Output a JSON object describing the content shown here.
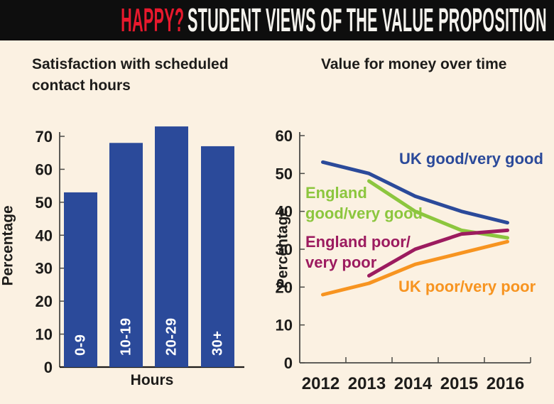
{
  "header": {
    "highlight": "HAPPY?",
    "title": "STUDENT VIEWS OF THE VALUE PROPOSITION"
  },
  "colors": {
    "background": "#fbf1e2",
    "header_bg": "#0e0e0e",
    "header_highlight": "#e8192d",
    "header_text": "#f5f3ee",
    "ink": "#1d1c1a",
    "axis": "#4a4a46",
    "bar_blue": "#2b4a9a",
    "uk_good_blue": "#2b4a9a",
    "england_good_green": "#8cc63e",
    "england_poor_magenta": "#9c1b5f",
    "uk_poor_orange": "#f79420"
  },
  "chart_data": [
    {
      "type": "bar",
      "title": "Satisfaction with scheduled\ncontact hours",
      "categories": [
        "0-9",
        "10-19",
        "20-29",
        "30+"
      ],
      "values": [
        53,
        68,
        73,
        67
      ],
      "xlabel": "Hours",
      "ylabel": "Percentage",
      "ylim": [
        0,
        70
      ],
      "yticks": [
        0,
        10,
        20,
        30,
        40,
        50,
        60,
        70
      ],
      "grid": false,
      "bar_color": "#2b4a9a",
      "bar_label_color": "#ffffff"
    },
    {
      "type": "line",
      "title": "Value for money over time",
      "x": [
        2012,
        2013,
        2014,
        2015,
        2016
      ],
      "series": [
        {
          "name": "UK good/very good",
          "label": "UK good/very good",
          "color": "#2b4a9a",
          "values": [
            53,
            50,
            44,
            40,
            37
          ]
        },
        {
          "name": "England good/very good",
          "label": "England\ngood/very good",
          "color": "#8cc63e",
          "values": [
            null,
            48,
            40,
            35,
            33
          ]
        },
        {
          "name": "England poor/very poor",
          "label": "England poor/\nvery poor",
          "color": "#9c1b5f",
          "values": [
            null,
            23,
            30,
            34,
            35
          ]
        },
        {
          "name": "UK poor/very poor",
          "label": "UK poor/very poor",
          "color": "#f79420",
          "values": [
            18,
            21,
            26,
            29,
            32
          ]
        }
      ],
      "xlabel": "",
      "ylabel": "Percentage",
      "ylim": [
        0,
        60
      ],
      "yticks": [
        0,
        10,
        20,
        30,
        40,
        50,
        60
      ],
      "grid": false,
      "legend_position": "inline-labels"
    }
  ]
}
